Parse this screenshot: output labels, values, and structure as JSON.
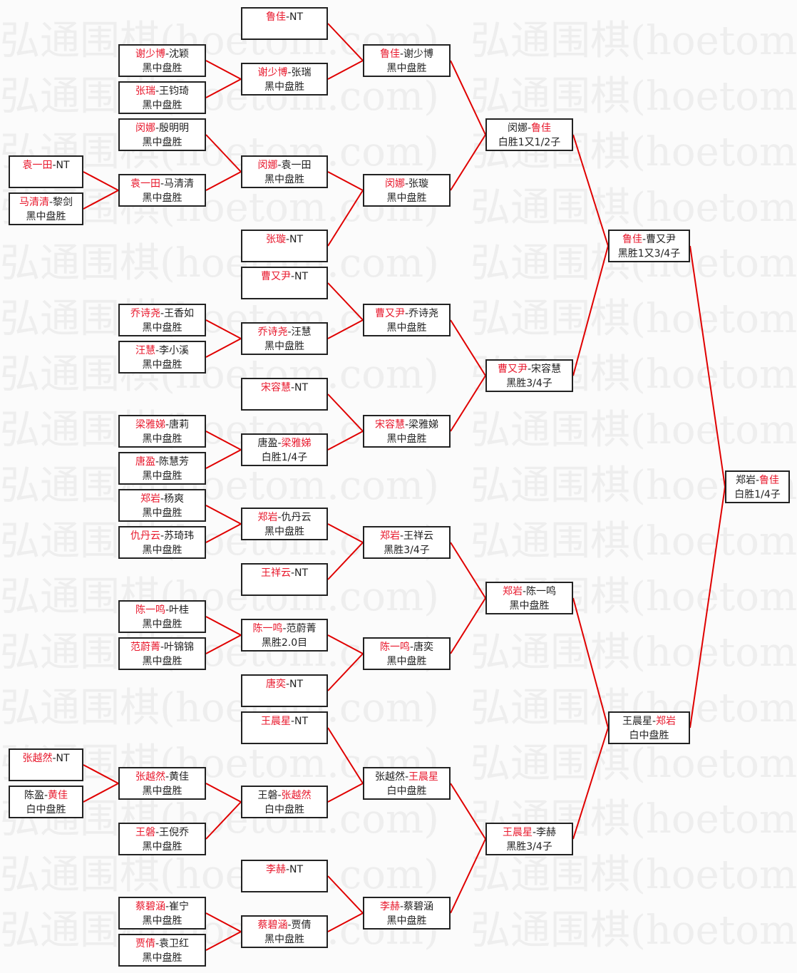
{
  "watermark": "弘通围棋(hoetom.com)",
  "colors": {
    "line": "#e00000",
    "winner": "#e8182c",
    "border": "#222222"
  },
  "rounds": [
    [
      {
        "a": "袁一田",
        "b": "NT",
        "winner": "a",
        "result": ""
      },
      {
        "a": "马清清",
        "b": "黎剑",
        "winner": "a",
        "result": "黑中盘胜"
      },
      {
        "a": "张越然",
        "b": "NT",
        "winner": "a",
        "result": ""
      },
      {
        "a": "陈盈",
        "b": "黄佳",
        "winner": "b",
        "result": "白中盘胜"
      }
    ],
    [
      {
        "a": "谢少博",
        "b": "沈颖",
        "winner": "a",
        "result": "黑中盘胜"
      },
      {
        "a": "张瑞",
        "b": "王钧琦",
        "winner": "a",
        "result": "黑中盘胜"
      },
      {
        "a": "闵娜",
        "b": "殷明明",
        "winner": "a",
        "result": "黑中盘胜"
      },
      {
        "a": "袁一田",
        "b": "马清清",
        "winner": "a",
        "result": "黑中盘胜"
      },
      {
        "a": "乔诗尧",
        "b": "王香如",
        "winner": "a",
        "result": "黑中盘胜"
      },
      {
        "a": "汪慧",
        "b": "李小溪",
        "winner": "a",
        "result": "黑中盘胜"
      },
      {
        "a": "梁雅娣",
        "b": "唐莉",
        "winner": "a",
        "result": "黑中盘胜"
      },
      {
        "a": "唐盈",
        "b": "陈慧芳",
        "winner": "a",
        "result": "黑中盘胜"
      },
      {
        "a": "郑岩",
        "b": "杨爽",
        "winner": "a",
        "result": "黑中盘胜"
      },
      {
        "a": "仇丹云",
        "b": "苏琦玮",
        "winner": "a",
        "result": "黑中盘胜"
      },
      {
        "a": "陈一鸣",
        "b": "叶桂",
        "winner": "a",
        "result": "黑中盘胜"
      },
      {
        "a": "范蔚菁",
        "b": "叶锦锦",
        "winner": "a",
        "result": "黑中盘胜"
      },
      {
        "a": "张越然",
        "b": "黄佳",
        "winner": "a",
        "result": "黑中盘胜"
      },
      {
        "a": "王磐",
        "b": "王倪乔",
        "winner": "a",
        "result": "黑中盘胜"
      },
      {
        "a": "蔡碧涵",
        "b": "崔宁",
        "winner": "a",
        "result": "黑中盘胜"
      },
      {
        "a": "贾倩",
        "b": "袁卫红",
        "winner": "a",
        "result": "黑中盘胜"
      }
    ],
    [
      {
        "a": "鲁佳",
        "b": "NT",
        "winner": "a",
        "result": ""
      },
      {
        "a": "谢少博",
        "b": "张瑞",
        "winner": "a",
        "result": "黑中盘胜"
      },
      {
        "a": "闵娜",
        "b": "袁一田",
        "winner": "a",
        "result": "黑中盘胜"
      },
      {
        "a": "张璇",
        "b": "NT",
        "winner": "a",
        "result": ""
      },
      {
        "a": "曹又尹",
        "b": "NT",
        "winner": "a",
        "result": ""
      },
      {
        "a": "乔诗尧",
        "b": "汪慧",
        "winner": "a",
        "result": "黑中盘胜"
      },
      {
        "a": "宋容慧",
        "b": "NT",
        "winner": "a",
        "result": ""
      },
      {
        "a": "唐盈",
        "b": "梁雅娣",
        "winner": "b",
        "result": "白胜1/4子"
      },
      {
        "a": "郑岩",
        "b": "仇丹云",
        "winner": "a",
        "result": "黑中盘胜"
      },
      {
        "a": "王祥云",
        "b": "NT",
        "winner": "a",
        "result": ""
      },
      {
        "a": "陈一鸣",
        "b": "范蔚菁",
        "winner": "a",
        "result": "黑胜2.0目"
      },
      {
        "a": "唐奕",
        "b": "NT",
        "winner": "a",
        "result": ""
      },
      {
        "a": "王晨星",
        "b": "NT",
        "winner": "a",
        "result": ""
      },
      {
        "a": "王磐",
        "b": "张越然",
        "winner": "b",
        "result": "白中盘胜"
      },
      {
        "a": "李赫",
        "b": "NT",
        "winner": "a",
        "result": ""
      },
      {
        "a": "蔡碧涵",
        "b": "贾倩",
        "winner": "a",
        "result": "黑中盘胜"
      }
    ],
    [
      {
        "a": "鲁佳",
        "b": "谢少博",
        "winner": "a",
        "result": "黑中盘胜"
      },
      {
        "a": "闵娜",
        "b": "张璇",
        "winner": "a",
        "result": "黑中盘胜"
      },
      {
        "a": "曹又尹",
        "b": "乔诗尧",
        "winner": "a",
        "result": "黑中盘胜"
      },
      {
        "a": "宋容慧",
        "b": "梁雅娣",
        "winner": "a",
        "result": "黑中盘胜"
      },
      {
        "a": "郑岩",
        "b": "王祥云",
        "winner": "a",
        "result": "黑胜3/4子"
      },
      {
        "a": "陈一鸣",
        "b": "唐奕",
        "winner": "a",
        "result": "黑中盘胜"
      },
      {
        "a": "张越然",
        "b": "王晨星",
        "winner": "b",
        "result": "白中盘胜"
      },
      {
        "a": "李赫",
        "b": "蔡碧涵",
        "winner": "a",
        "result": "黑中盘胜"
      }
    ],
    [
      {
        "a": "闵娜",
        "b": "鲁佳",
        "winner": "b",
        "result": "白胜1又1/2子"
      },
      {
        "a": "曹又尹",
        "b": "宋容慧",
        "winner": "a",
        "result": "黑胜3/4子"
      },
      {
        "a": "郑岩",
        "b": "陈一鸣",
        "winner": "a",
        "result": "黑中盘胜"
      },
      {
        "a": "王晨星",
        "b": "李赫",
        "winner": "a",
        "result": "黑胜3/4子"
      }
    ],
    [
      {
        "a": "鲁佳",
        "b": "曹又尹",
        "winner": "a",
        "result": "黑胜1又3/4子"
      },
      {
        "a": "王晨星",
        "b": "郑岩",
        "winner": "b",
        "result": "白中盘胜"
      }
    ],
    [
      {
        "a": "郑岩",
        "b": "鲁佳",
        "winner": "b",
        "result": "白胜1/4子"
      }
    ]
  ]
}
